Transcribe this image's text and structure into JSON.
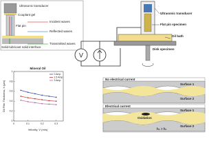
{
  "diagrams": {
    "probe": {
      "labels": [
        "Ultrasonic transducer",
        "Couplant gel",
        "Flat pin",
        "Incident waves",
        "Reflected waves",
        "Solid-lubricant solid interface",
        "Transmitted waves"
      ]
    },
    "circuit": {
      "voltmeter": "V"
    },
    "rig": {
      "labels": [
        "Ultrasonic transducer",
        "Flat pin specimen",
        "Oil bath",
        "Disk specimen"
      ]
    },
    "mechanism": {
      "no_current": "No electrical current",
      "current": "Electrical current",
      "surface1": "Surface 1",
      "surface2": "Surface 2",
      "surface1b": "Surface 1",
      "surface2b": "Surface 2",
      "oxidation": "Oxidation",
      "relation": "h₂ > h₁"
    }
  },
  "chart_data": {
    "type": "line",
    "title": "Mineral Oil",
    "x_label": "Velocity, V (m/s)",
    "y_label": "Oil Film Thickness, h (μm)",
    "x": [
      0.05,
      0.1,
      0.15,
      0.2,
      0.25,
      0.3
    ],
    "series": [
      {
        "name": "0 Amp",
        "color": "#3a4fa8",
        "values": [
          0.62,
          0.58,
          0.55,
          0.52,
          0.5,
          0.48
        ]
      },
      {
        "name": "1.5 Amp",
        "color": "#c0392b",
        "values": [
          0.5,
          0.47,
          0.45,
          0.43,
          0.41,
          0.4
        ]
      },
      {
        "name": "3 Amp",
        "color": "#b565a7",
        "values": [
          0.42,
          0.39,
          0.37,
          0.35,
          0.34,
          0.33
        ]
      }
    ],
    "xlim": [
      0,
      0.35
    ],
    "xticks": [
      0,
      0.1,
      0.2,
      0.3
    ],
    "ylim": [
      0,
      1
    ],
    "yticks": [
      0,
      0.2,
      0.4,
      0.6,
      0.8,
      1
    ],
    "grid": false,
    "legend": "upper right"
  }
}
